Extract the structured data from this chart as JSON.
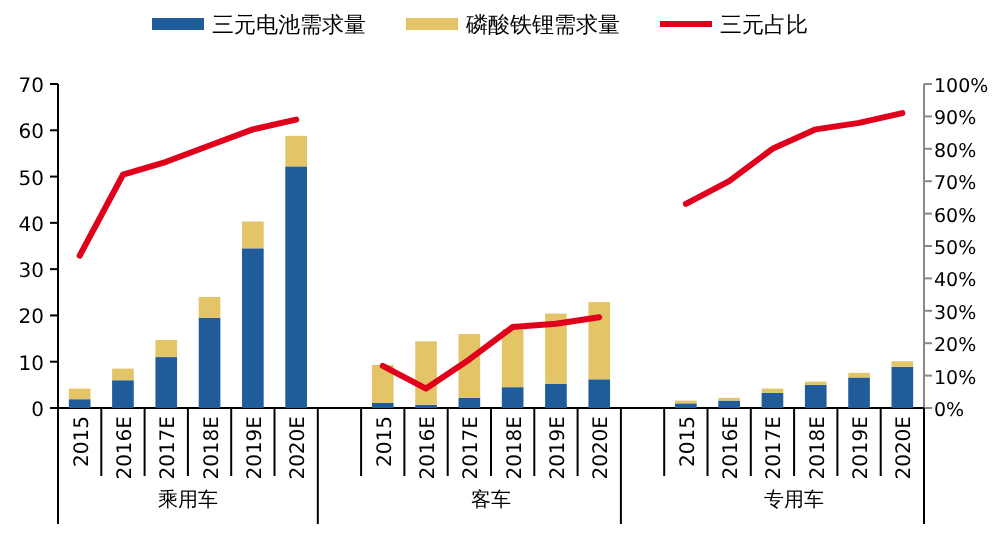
{
  "chart_data": {
    "type": "bar",
    "stacked": true,
    "legend": "top",
    "grid": false,
    "categories": [
      "2015",
      "2016E",
      "2017E",
      "2018E",
      "2019E",
      "2020E",
      null,
      "2015",
      "2016E",
      "2017E",
      "2018E",
      "2019E",
      "2020E",
      null,
      "2015",
      "2016E",
      "2017E",
      "2018E",
      "2019E",
      "2020E"
    ],
    "series": [
      {
        "name": "三元电池需求量",
        "color": "#1f5c99",
        "values": [
          1.9,
          6,
          11,
          19.5,
          34.5,
          52.2,
          null,
          1.1,
          0.7,
          2.2,
          4.5,
          5.2,
          6.2,
          null,
          1.0,
          1.6,
          3.3,
          5.0,
          6.6,
          8.9
        ]
      },
      {
        "name": "磷酸铁锂需求量",
        "color": "#e3c567",
        "values": [
          2.3,
          2.5,
          3.7,
          4.5,
          5.8,
          6.6,
          null,
          8.2,
          13.7,
          13.8,
          12.5,
          15.2,
          16.7,
          null,
          0.6,
          0.6,
          0.9,
          0.7,
          1.0,
          1.2
        ]
      },
      {
        "name": "三元占比",
        "type": "line",
        "axis": "y2",
        "color": "#e0001b",
        "values": [
          47,
          72,
          76,
          81,
          86,
          89,
          null,
          13,
          6,
          15,
          25,
          26,
          28,
          null,
          63,
          70,
          80,
          86,
          88,
          91
        ]
      }
    ],
    "ylim": [
      0,
      70
    ],
    "yticks": [
      0,
      10,
      20,
      30,
      40,
      50,
      60,
      70
    ],
    "y2lim": [
      0,
      100
    ],
    "y2ticks": [
      {
        "value": 0,
        "label": "0%"
      },
      {
        "value": 10,
        "label": "10%"
      },
      {
        "value": 20,
        "label": "20%"
      },
      {
        "value": 30,
        "label": "30%"
      },
      {
        "value": 40,
        "label": "40%"
      },
      {
        "value": 50,
        "label": "50%"
      },
      {
        "value": 60,
        "label": "60%"
      },
      {
        "value": 70,
        "label": "70%"
      },
      {
        "value": 80,
        "label": "80%"
      },
      {
        "value": 90,
        "label": "90%"
      },
      {
        "value": 100,
        "label": "100%"
      }
    ],
    "annotations": [
      "乘用车",
      "客车",
      "专用车"
    ]
  }
}
